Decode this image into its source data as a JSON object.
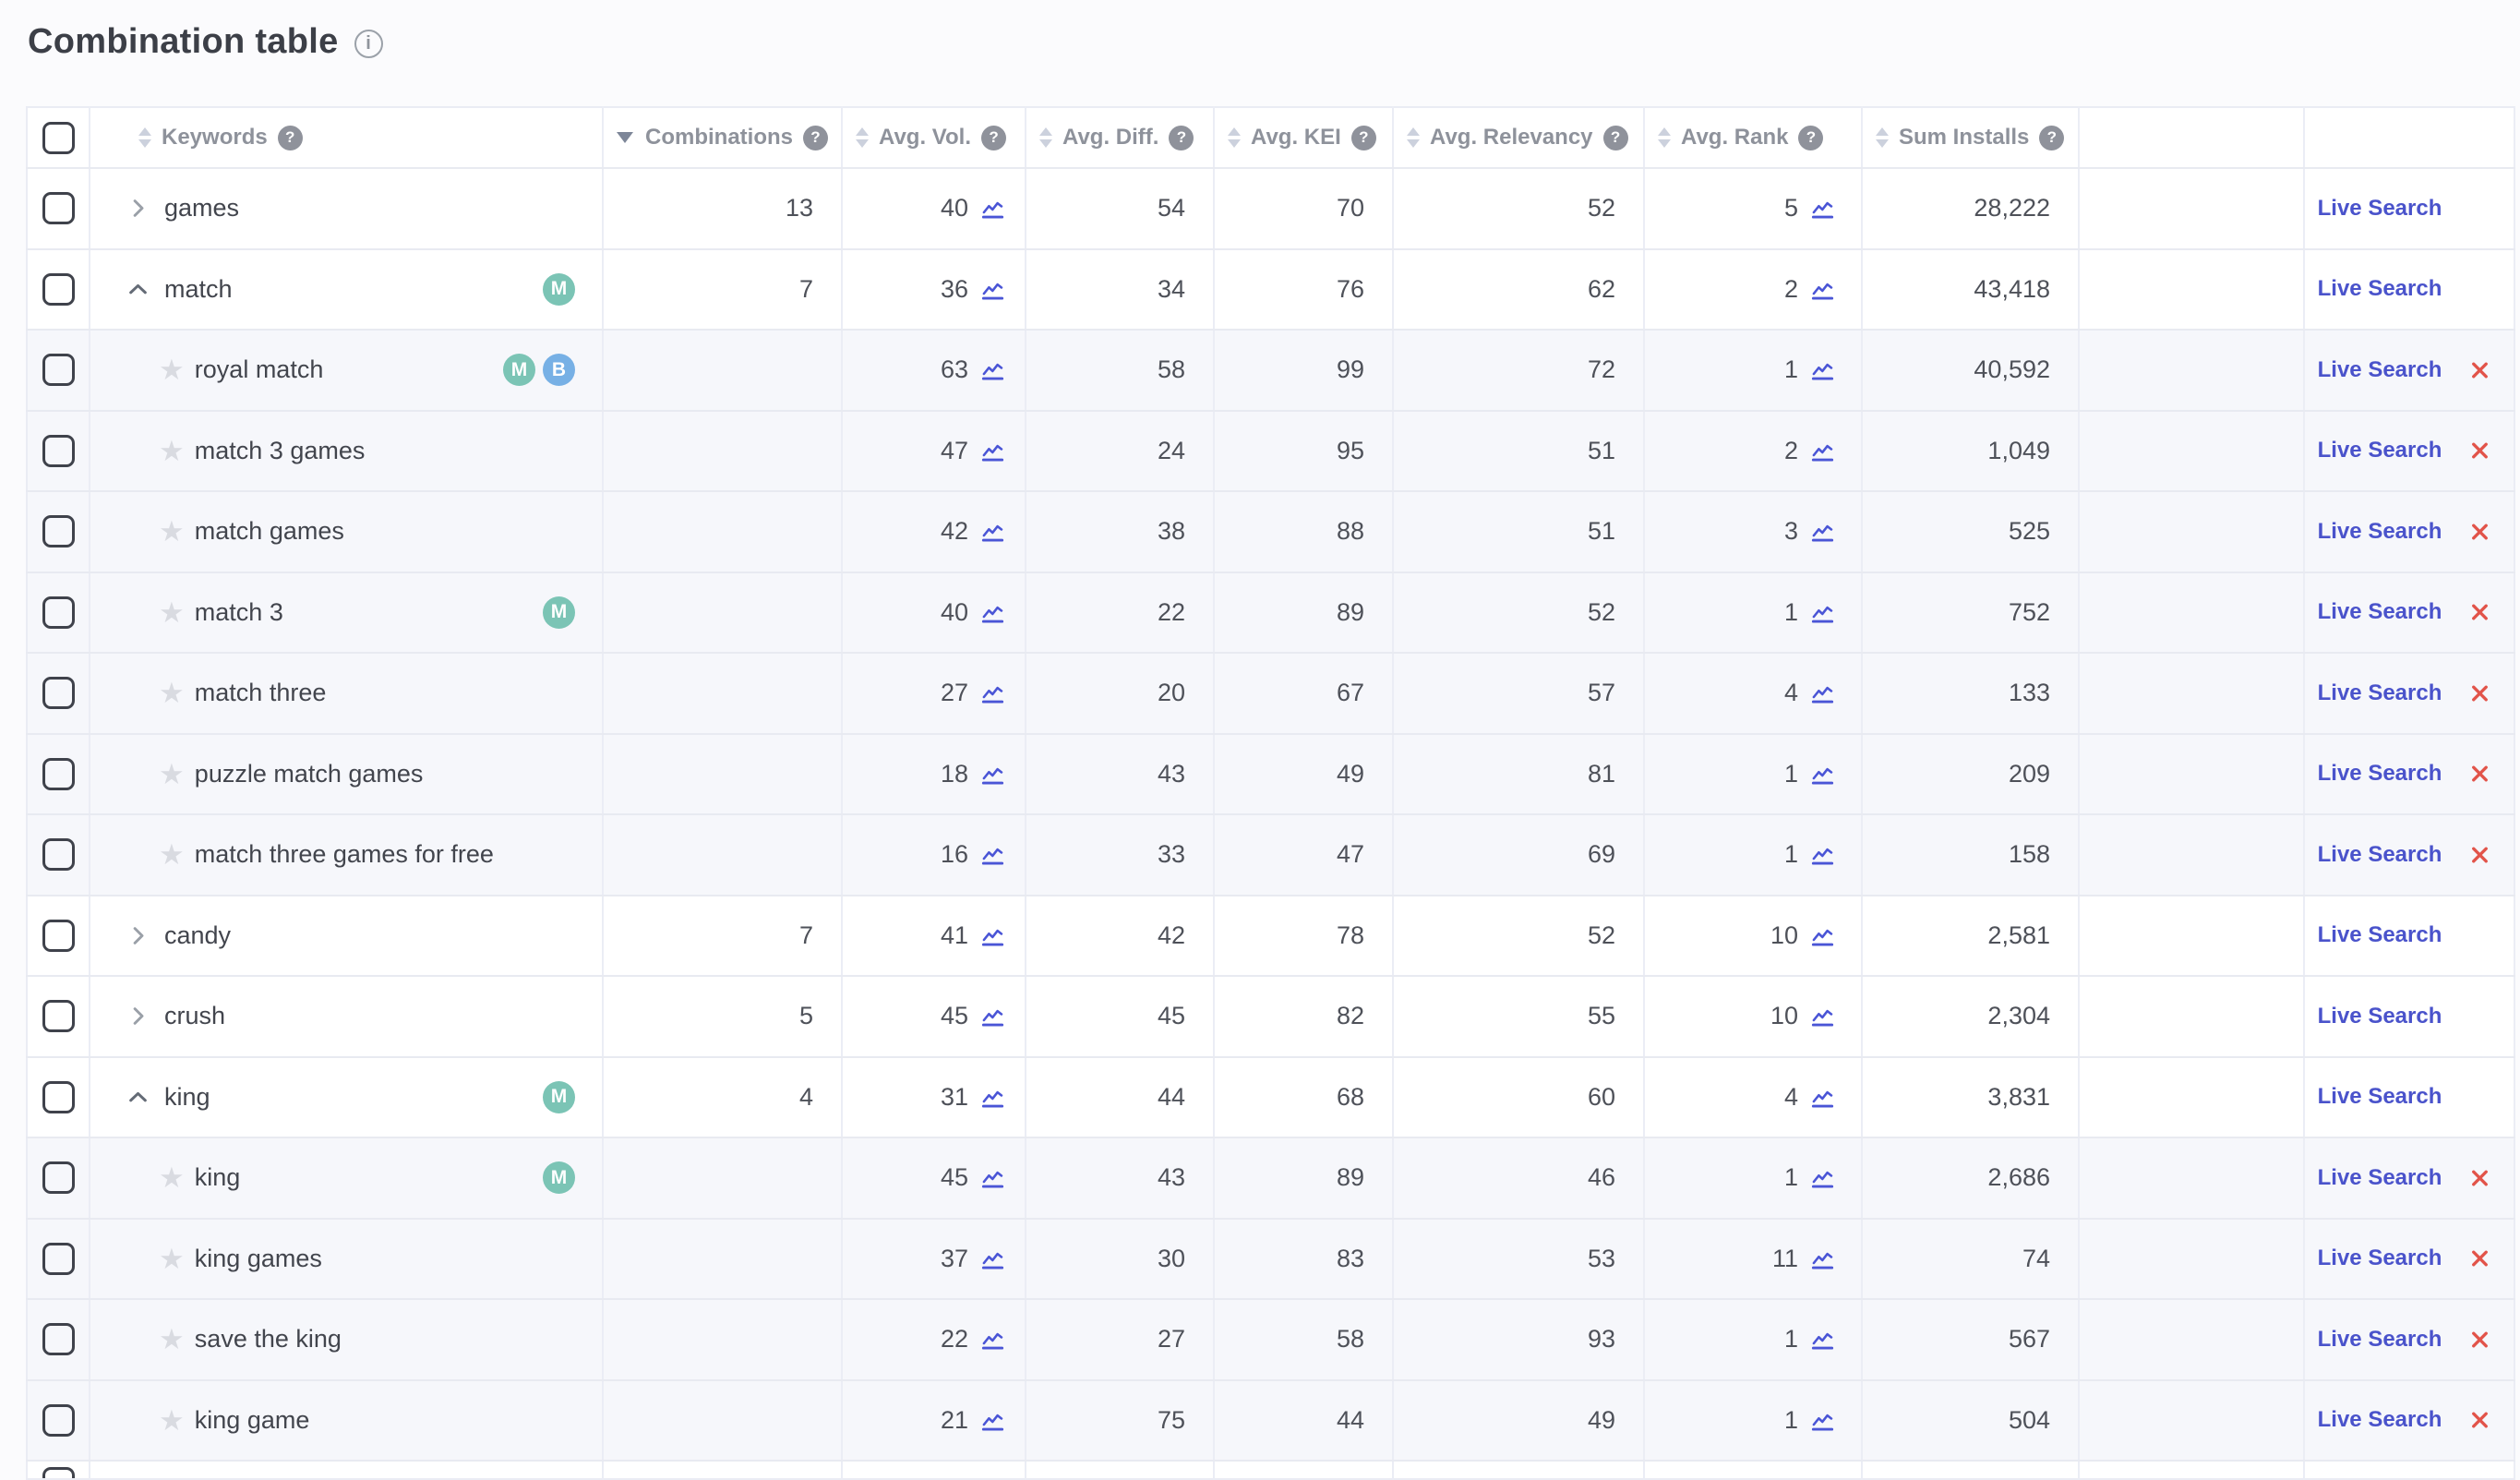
{
  "page": {
    "title": "Combination table"
  },
  "colors": {
    "link_blue": "#4a53cb",
    "remove_red": "#e2544a",
    "chart_icon_blue": "#4a55d6",
    "badge_m_teal": "#7bc4b5",
    "badge_b_blue": "#77b0e5",
    "child_row_bg": "#f6f7fb",
    "header_text": "#8e929b"
  },
  "icons": {
    "title_info": "info-icon",
    "column_help": "help-icon",
    "sort": "sort-icon",
    "sort_desc": "sort-desc-icon",
    "expand_collapsed": "chevron-right-icon",
    "expand_expanded": "chevron-up-icon",
    "favorite": "star-icon",
    "trend": "line-chart-icon",
    "remove": "remove-icon"
  },
  "table": {
    "live_search_label": "Live Search",
    "columns": [
      {
        "key": "keyword",
        "label": "Keywords",
        "sort": "both",
        "help": true
      },
      {
        "key": "combinations",
        "label": "Combinations",
        "sort": "desc",
        "help": true
      },
      {
        "key": "avg_vol",
        "label": "Avg. Vol.",
        "sort": "both",
        "help": true
      },
      {
        "key": "avg_diff",
        "label": "Avg. Diff.",
        "sort": "both",
        "help": true
      },
      {
        "key": "avg_kei",
        "label": "Avg. KEI",
        "sort": "both",
        "help": true
      },
      {
        "key": "avg_relevancy",
        "label": "Avg. Relevancy",
        "sort": "both",
        "help": true
      },
      {
        "key": "avg_rank",
        "label": "Avg. Rank",
        "sort": "both",
        "help": true
      },
      {
        "key": "sum_installs",
        "label": "Sum Installs",
        "sort": "both",
        "help": true
      }
    ],
    "rows": [
      {
        "type": "parent",
        "expanded": false,
        "keyword": "games",
        "badges": [],
        "combinations": "13",
        "avg_vol": "40",
        "avg_diff": "54",
        "avg_kei": "70",
        "avg_relevancy": "52",
        "avg_rank": "5",
        "sum_installs": "28,222",
        "removable": false
      },
      {
        "type": "parent",
        "expanded": true,
        "keyword": "match",
        "badges": [
          "M"
        ],
        "combinations": "7",
        "avg_vol": "36",
        "avg_diff": "34",
        "avg_kei": "76",
        "avg_relevancy": "62",
        "avg_rank": "2",
        "sum_installs": "43,418",
        "removable": false
      },
      {
        "type": "child",
        "keyword": "royal match",
        "badges": [
          "M",
          "B"
        ],
        "combinations": "",
        "avg_vol": "63",
        "avg_diff": "58",
        "avg_kei": "99",
        "avg_relevancy": "72",
        "avg_rank": "1",
        "sum_installs": "40,592",
        "removable": true
      },
      {
        "type": "child",
        "keyword": "match 3 games",
        "badges": [],
        "combinations": "",
        "avg_vol": "47",
        "avg_diff": "24",
        "avg_kei": "95",
        "avg_relevancy": "51",
        "avg_rank": "2",
        "sum_installs": "1,049",
        "removable": true
      },
      {
        "type": "child",
        "keyword": "match games",
        "badges": [],
        "combinations": "",
        "avg_vol": "42",
        "avg_diff": "38",
        "avg_kei": "88",
        "avg_relevancy": "51",
        "avg_rank": "3",
        "sum_installs": "525",
        "removable": true
      },
      {
        "type": "child",
        "keyword": "match 3",
        "badges": [
          "M"
        ],
        "combinations": "",
        "avg_vol": "40",
        "avg_diff": "22",
        "avg_kei": "89",
        "avg_relevancy": "52",
        "avg_rank": "1",
        "sum_installs": "752",
        "removable": true
      },
      {
        "type": "child",
        "keyword": "match three",
        "badges": [],
        "combinations": "",
        "avg_vol": "27",
        "avg_diff": "20",
        "avg_kei": "67",
        "avg_relevancy": "57",
        "avg_rank": "4",
        "sum_installs": "133",
        "removable": true
      },
      {
        "type": "child",
        "keyword": "puzzle match games",
        "badges": [],
        "combinations": "",
        "avg_vol": "18",
        "avg_diff": "43",
        "avg_kei": "49",
        "avg_relevancy": "81",
        "avg_rank": "1",
        "sum_installs": "209",
        "removable": true
      },
      {
        "type": "child",
        "keyword": "match three games for free",
        "badges": [],
        "combinations": "",
        "avg_vol": "16",
        "avg_diff": "33",
        "avg_kei": "47",
        "avg_relevancy": "69",
        "avg_rank": "1",
        "sum_installs": "158",
        "removable": true
      },
      {
        "type": "parent",
        "expanded": false,
        "keyword": "candy",
        "badges": [],
        "combinations": "7",
        "avg_vol": "41",
        "avg_diff": "42",
        "avg_kei": "78",
        "avg_relevancy": "52",
        "avg_rank": "10",
        "sum_installs": "2,581",
        "removable": false
      },
      {
        "type": "parent",
        "expanded": false,
        "keyword": "crush",
        "badges": [],
        "combinations": "5",
        "avg_vol": "45",
        "avg_diff": "45",
        "avg_kei": "82",
        "avg_relevancy": "55",
        "avg_rank": "10",
        "sum_installs": "2,304",
        "removable": false
      },
      {
        "type": "parent",
        "expanded": true,
        "keyword": "king",
        "badges": [
          "M"
        ],
        "combinations": "4",
        "avg_vol": "31",
        "avg_diff": "44",
        "avg_kei": "68",
        "avg_relevancy": "60",
        "avg_rank": "4",
        "sum_installs": "3,831",
        "removable": false
      },
      {
        "type": "child",
        "keyword": "king",
        "badges": [
          "M"
        ],
        "combinations": "",
        "avg_vol": "45",
        "avg_diff": "43",
        "avg_kei": "89",
        "avg_relevancy": "46",
        "avg_rank": "1",
        "sum_installs": "2,686",
        "removable": true
      },
      {
        "type": "child",
        "keyword": "king games",
        "badges": [],
        "combinations": "",
        "avg_vol": "37",
        "avg_diff": "30",
        "avg_kei": "83",
        "avg_relevancy": "53",
        "avg_rank": "11",
        "sum_installs": "74",
        "removable": true
      },
      {
        "type": "child",
        "keyword": "save the king",
        "badges": [],
        "combinations": "",
        "avg_vol": "22",
        "avg_diff": "27",
        "avg_kei": "58",
        "avg_relevancy": "93",
        "avg_rank": "1",
        "sum_installs": "567",
        "removable": true
      },
      {
        "type": "child",
        "keyword": "king game",
        "badges": [],
        "combinations": "",
        "avg_vol": "21",
        "avg_diff": "75",
        "avg_kei": "44",
        "avg_relevancy": "49",
        "avg_rank": "1",
        "sum_installs": "504",
        "removable": true
      }
    ]
  }
}
